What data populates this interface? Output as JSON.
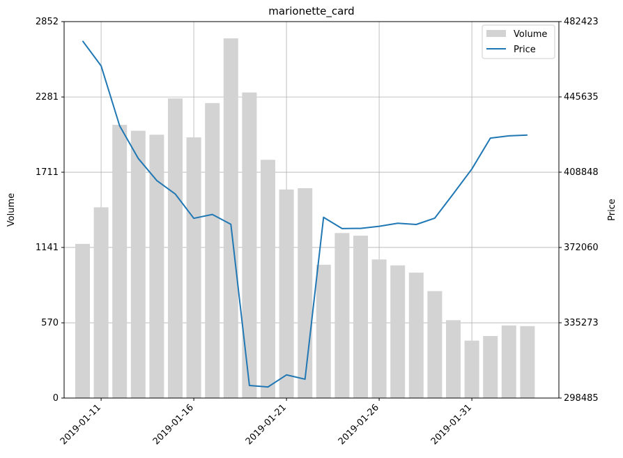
{
  "chart_data": {
    "type": "bar",
    "title": "marionette_card",
    "xlabel": "",
    "ylabel": "Volume",
    "y2label": "Price",
    "x": [
      "2019-01-10",
      "2019-01-11",
      "2019-01-12",
      "2019-01-13",
      "2019-01-14",
      "2019-01-15",
      "2019-01-16",
      "2019-01-17",
      "2019-01-18",
      "2019-01-19",
      "2019-01-20",
      "2019-01-21",
      "2019-01-22",
      "2019-01-23",
      "2019-01-24",
      "2019-01-25",
      "2019-01-26",
      "2019-01-27",
      "2019-01-28",
      "2019-01-29",
      "2019-01-30",
      "2019-01-31",
      "2019-02-01",
      "2019-02-02",
      "2019-02-03"
    ],
    "x_tick_labels": [
      "2019-01-11",
      "2019-01-16",
      "2019-01-21",
      "2019-01-26",
      "2019-01-31"
    ],
    "ylim": [
      0,
      2852
    ],
    "y_ticks": [
      0,
      570,
      1141,
      1711,
      2281,
      2852
    ],
    "y2lim": [
      298485,
      482423
    ],
    "y2_ticks": [
      298485,
      335273,
      372060,
      408848,
      445635,
      482423
    ],
    "grid": true,
    "legend_position": "top-right",
    "series": [
      {
        "name": "Volume",
        "kind": "bar",
        "axis": "left",
        "color": "#d3d3d3",
        "values": [
          1168,
          1445,
          2070,
          2025,
          1995,
          2270,
          1975,
          2235,
          2725,
          2315,
          1805,
          1580,
          1590,
          1010,
          1250,
          1230,
          1050,
          1005,
          950,
          810,
          590,
          435,
          470,
          550,
          545
        ]
      },
      {
        "name": "Price",
        "kind": "line",
        "axis": "right",
        "color": "#1f77b4",
        "values": [
          473000,
          460800,
          431500,
          415600,
          404800,
          398200,
          386300,
          388200,
          383400,
          304600,
          303900,
          309800,
          307700,
          386800,
          381300,
          381400,
          382400,
          383900,
          383300,
          386400,
          398300,
          410400,
          425500,
          426600,
          427000
        ]
      }
    ]
  }
}
